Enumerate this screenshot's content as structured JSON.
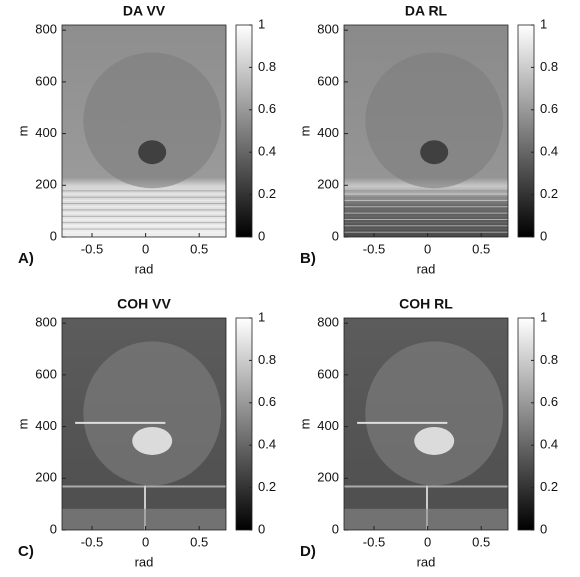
{
  "chart_data": [
    {
      "type": "image",
      "title": "DA VV",
      "panel_label": "A)",
      "xlabel": "rad",
      "ylabel": "m",
      "xlim": [
        -0.78,
        0.75
      ],
      "xticks": [
        -0.5,
        0,
        0.5
      ],
      "ylim": [
        0,
        820
      ],
      "yticks": [
        0,
        200,
        400,
        600,
        800
      ],
      "colorbar": {
        "lim": [
          0,
          1
        ],
        "ticks": [
          0,
          0.2,
          0.4,
          0.6,
          0.8,
          1
        ]
      }
    },
    {
      "type": "image",
      "title": "DA RL",
      "panel_label": "B)",
      "xlabel": "rad",
      "ylabel": "m",
      "xlim": [
        -0.78,
        0.75
      ],
      "xticks": [
        -0.5,
        0,
        0.5
      ],
      "ylim": [
        0,
        820
      ],
      "yticks": [
        0,
        200,
        400,
        600,
        800
      ],
      "colorbar": {
        "lim": [
          0,
          1
        ],
        "ticks": [
          0,
          0.2,
          0.4,
          0.6,
          0.8,
          1
        ]
      }
    },
    {
      "type": "image",
      "title": "COH VV",
      "panel_label": "C)",
      "xlabel": "rad",
      "ylabel": "m",
      "xlim": [
        -0.78,
        0.75
      ],
      "xticks": [
        -0.5,
        0,
        0.5
      ],
      "ylim": [
        0,
        820
      ],
      "yticks": [
        0,
        200,
        400,
        600,
        800
      ],
      "colorbar": {
        "lim": [
          0,
          1
        ],
        "ticks": [
          0,
          0.2,
          0.4,
          0.6,
          0.8,
          1
        ]
      }
    },
    {
      "type": "image",
      "title": "COH RL",
      "panel_label": "D)",
      "xlabel": "rad",
      "ylabel": "m",
      "xlim": [
        -0.78,
        0.75
      ],
      "xticks": [
        -0.5,
        0,
        0.5
      ],
      "ylim": [
        0,
        820
      ],
      "yticks": [
        0,
        200,
        400,
        600,
        800
      ],
      "colorbar": {
        "lim": [
          0,
          1
        ],
        "ticks": [
          0,
          0.2,
          0.4,
          0.6,
          0.8,
          1
        ]
      }
    }
  ]
}
